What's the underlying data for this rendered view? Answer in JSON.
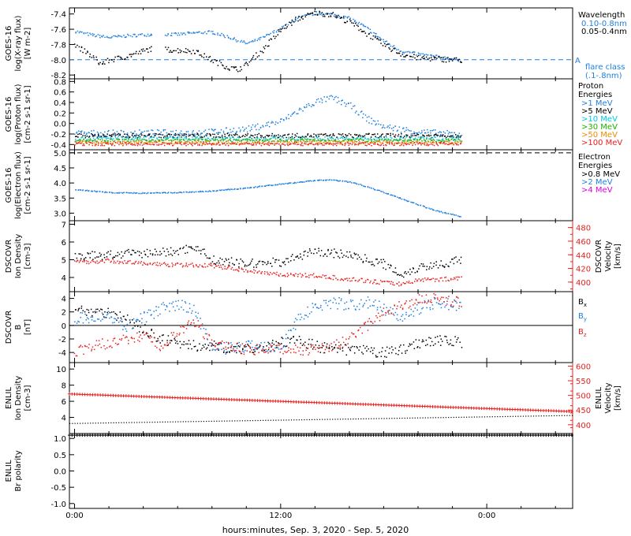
{
  "colors": {
    "black": "#000000",
    "blue": "#1f7fe0",
    "cyan": "#00c8e8",
    "green": "#22b000",
    "orange": "#f08a00",
    "red": "#e8211e",
    "magenta": "#e000e0"
  },
  "footer": {
    "xlabel": "hours:minutes, Sep.  3, 2020 - Sep.  5, 2020"
  },
  "chart_data": [
    {
      "id": "xray",
      "type": "scatter",
      "ylabel": [
        "GOES-16",
        "log(X-ray flux)",
        "[W m-2]"
      ],
      "ylim": [
        -8.25,
        -7.32
      ],
      "yticks": [
        -8.2,
        -8.0,
        -7.8,
        -7.6,
        -7.4
      ],
      "ytick_labels": [
        "-8.2",
        "-8.0",
        "-7.8",
        "-7.6",
        "-7.4"
      ],
      "xlim_hours": [
        -0.3,
        29.0
      ],
      "legend_title": "Wavelength",
      "legend": [
        {
          "label": "0.10-0.8nm",
          "color_key": "blue"
        },
        {
          "label": "0.05-0.4nm",
          "color_key": "black"
        }
      ],
      "reference_line": {
        "y": -8.0,
        "label": "A",
        "note": [
          "flare class",
          "(.1-.8nm)"
        ],
        "color_key": "blue"
      },
      "gaps_hours": [
        [
          4.5,
          5.2
        ]
      ],
      "series": [
        {
          "name": "0.10-0.8nm",
          "color_key": "blue",
          "spread": 0.02,
          "x": [
            0,
            1,
            2,
            3,
            4.4,
            5.3,
            6,
            7,
            8,
            9,
            10,
            11,
            12,
            13,
            14,
            15,
            16,
            17,
            18,
            19,
            20,
            21,
            22.5
          ],
          "y": [
            -7.62,
            -7.67,
            -7.7,
            -7.68,
            -7.66,
            -7.66,
            -7.66,
            -7.64,
            -7.63,
            -7.7,
            -7.78,
            -7.7,
            -7.58,
            -7.45,
            -7.38,
            -7.4,
            -7.45,
            -7.58,
            -7.75,
            -7.88,
            -7.92,
            -7.95,
            -8.0
          ]
        },
        {
          "name": "0.05-0.4nm",
          "color_key": "black",
          "spread": 0.035,
          "x": [
            0,
            1,
            1.5,
            2,
            3,
            4.4,
            7,
            8,
            9,
            9.5,
            10,
            11,
            12,
            13,
            14,
            15,
            16,
            17,
            18,
            19,
            20,
            21,
            22.5
          ],
          "y": [
            -7.8,
            -7.95,
            -8.05,
            -8.0,
            -7.95,
            -7.85,
            -7.88,
            -8.0,
            -8.1,
            -8.12,
            -8.05,
            -7.85,
            -7.6,
            -7.45,
            -7.38,
            -7.4,
            -7.5,
            -7.65,
            -7.8,
            -7.92,
            -7.97,
            -7.98,
            -8.0
          ]
        }
      ]
    },
    {
      "id": "proton",
      "type": "scatter",
      "ylabel": [
        "GOES-16",
        "log(Proton flux)",
        "[cm-2 s-1 sr-1]"
      ],
      "ylim": [
        -0.5,
        0.85
      ],
      "yticks": [
        -0.4,
        -0.2,
        0.0,
        0.2,
        0.4,
        0.6,
        0.8
      ],
      "ytick_labels": [
        "-0.4",
        "-0.2",
        "0.0",
        "0.2",
        "0.4",
        "0.6",
        "0.8"
      ],
      "xlim_hours": [
        -0.3,
        29.0
      ],
      "legend_title": [
        "Proton",
        "Energies"
      ],
      "legend": [
        {
          "label": ">1 MeV",
          "color_key": "blue"
        },
        {
          "label": ">5 MeV",
          "color_key": "black"
        },
        {
          "label": ">10 MeV",
          "color_key": "cyan"
        },
        {
          "label": ">30 MeV",
          "color_key": "green"
        },
        {
          "label": ">50 MeV",
          "color_key": "orange"
        },
        {
          "label": ">100 MeV",
          "color_key": "red"
        }
      ],
      "series": [
        {
          "name": ">1 MeV",
          "color_key": "blue",
          "spread": 0.06,
          "x": [
            0,
            4,
            8,
            10,
            12,
            13,
            14,
            15,
            16,
            17,
            18,
            20,
            22.5
          ],
          "y": [
            -0.18,
            -0.17,
            -0.15,
            -0.1,
            0.05,
            0.25,
            0.42,
            0.5,
            0.35,
            0.1,
            -0.05,
            -0.15,
            -0.2
          ]
        },
        {
          "name": ">5 MeV",
          "color_key": "black",
          "spread": 0.04,
          "x": [
            0,
            22.5
          ],
          "y": [
            -0.22,
            -0.22
          ]
        },
        {
          "name": ">10 MeV",
          "color_key": "cyan",
          "spread": 0.04,
          "x": [
            0,
            22.5
          ],
          "y": [
            -0.28,
            -0.28
          ]
        },
        {
          "name": ">30 MeV",
          "color_key": "green",
          "spread": 0.03,
          "x": [
            0,
            22.5
          ],
          "y": [
            -0.31,
            -0.31
          ]
        },
        {
          "name": ">50 MeV",
          "color_key": "orange",
          "spread": 0.03,
          "x": [
            0,
            22.5
          ],
          "y": [
            -0.35,
            -0.35
          ]
        },
        {
          "name": ">100 MeV",
          "color_key": "red",
          "spread": 0.03,
          "x": [
            0,
            22.5
          ],
          "y": [
            -0.38,
            -0.38
          ]
        }
      ]
    },
    {
      "id": "electron",
      "type": "scatter",
      "ylabel": [
        "GOES-16",
        "log(Electron flux)",
        "[cm-2 s-1 sr-1]"
      ],
      "ylim": [
        2.75,
        5.1
      ],
      "yticks": [
        3.0,
        3.5,
        4.0,
        4.5,
        5.0
      ],
      "ytick_labels": [
        "3.0",
        "3.5",
        "4.0",
        "4.5",
        "5.0"
      ],
      "xlim_hours": [
        -0.3,
        29.0
      ],
      "legend_title": [
        "Electron",
        "Energies"
      ],
      "legend": [
        {
          "label": ">0.8 MeV",
          "color_key": "black"
        },
        {
          "label": ">2 MeV",
          "color_key": "blue"
        },
        {
          "label": ">4 MeV",
          "color_key": "magenta"
        }
      ],
      "reference_line": {
        "y": 5.0,
        "color_key": "black"
      },
      "series": [
        {
          "name": ">2 MeV",
          "color_key": "blue",
          "spread": 0.015,
          "x": [
            0,
            2,
            4,
            6,
            8,
            10,
            12,
            14,
            15,
            16,
            17,
            18,
            19,
            20,
            21,
            22.5
          ],
          "y": [
            3.8,
            3.7,
            3.68,
            3.7,
            3.75,
            3.85,
            3.98,
            4.1,
            4.12,
            4.05,
            3.9,
            3.7,
            3.5,
            3.3,
            3.1,
            2.9
          ]
        }
      ]
    },
    {
      "id": "dscovr-density",
      "type": "scatter",
      "ylabel": [
        "DSCOVR",
        "Ion Density",
        "[cm-3]"
      ],
      "ylim": [
        3.2,
        7.2
      ],
      "yticks": [
        4,
        5,
        6,
        7
      ],
      "ytick_labels": [
        "4",
        "5",
        "6",
        "7"
      ],
      "y2label": [
        "DSCOVR",
        "Velocity",
        "[km/s]"
      ],
      "y2lim": [
        386,
        490
      ],
      "y2ticks": [
        400,
        420,
        440,
        460,
        480
      ],
      "y2tick_labels": [
        "400",
        "420",
        "440",
        "460",
        "480"
      ],
      "xlim_hours": [
        -0.3,
        29.0
      ],
      "series": [
        {
          "name": "density",
          "color_key": "black",
          "spread": 0.25,
          "x": [
            0,
            2,
            4,
            6,
            7,
            8,
            10,
            12,
            14,
            16,
            18,
            19,
            20,
            22.5
          ],
          "y": [
            5.2,
            5.3,
            5.4,
            5.5,
            5.8,
            5.0,
            4.8,
            4.9,
            5.5,
            5.3,
            4.8,
            4.2,
            4.6,
            5.0
          ]
        },
        {
          "name": "velocity",
          "color_key": "red",
          "axis": "right",
          "spread": 3,
          "x": [
            0,
            2,
            4,
            6,
            8,
            10,
            12,
            14,
            16,
            18,
            19,
            20,
            22.5
          ],
          "y": [
            430,
            432,
            428,
            426,
            425,
            418,
            412,
            410,
            405,
            400,
            398,
            404,
            406
          ]
        }
      ]
    },
    {
      "id": "dscovr-b",
      "type": "scatter",
      "ylabel": [
        "DSCOVR",
        "B",
        "[nT]"
      ],
      "ylim": [
        -5.5,
        5.0
      ],
      "yticks": [
        -4,
        -2,
        0,
        2,
        4
      ],
      "ytick_labels": [
        "-4",
        "-2",
        "0",
        "2",
        "4"
      ],
      "xlim_hours": [
        -0.3,
        29.0
      ],
      "zero_line": true,
      "legend": [
        {
          "label": "Bx",
          "color_key": "black"
        },
        {
          "label": "By",
          "color_key": "blue"
        },
        {
          "label": "Bz",
          "color_key": "red"
        }
      ],
      "series": [
        {
          "name": "Bx",
          "color_key": "black",
          "spread": 0.8,
          "x": [
            0,
            2,
            3,
            5,
            7,
            8,
            10,
            12,
            13,
            14,
            15,
            16,
            18,
            19,
            20,
            21,
            22.5
          ],
          "y": [
            2.5,
            2.0,
            1.0,
            -2.0,
            -3.0,
            -3.0,
            -3.5,
            -2.5,
            -2.0,
            -3.0,
            -3.5,
            -3.5,
            -4.0,
            -3.5,
            -2.5,
            -2.0,
            -2.5
          ]
        },
        {
          "name": "By",
          "color_key": "blue",
          "spread": 0.9,
          "x": [
            0,
            2,
            3,
            5,
            6,
            7,
            8,
            10,
            12,
            13,
            14,
            15,
            16,
            17,
            18,
            19,
            20,
            21,
            22.5
          ],
          "y": [
            1.0,
            1.5,
            0.0,
            2.5,
            3.0,
            2.5,
            -3.5,
            -3.0,
            -3.0,
            1.0,
            3.0,
            3.5,
            3.0,
            3.5,
            2.5,
            1.5,
            2.5,
            3.5,
            3.0
          ]
        },
        {
          "name": "Bz",
          "color_key": "red",
          "spread": 0.8,
          "x": [
            0,
            1,
            3,
            4,
            5,
            6,
            7,
            8,
            10,
            12,
            14,
            15,
            16,
            17,
            18,
            19,
            20,
            21,
            22.5
          ],
          "y": [
            -4.0,
            -3.0,
            -2.0,
            -1.5,
            -3.0,
            -1.0,
            0.5,
            -2.5,
            -3.5,
            -3.5,
            -3.5,
            -3.0,
            -2.0,
            0.0,
            2.0,
            3.0,
            4.0,
            4.0,
            3.5
          ]
        }
      ]
    },
    {
      "id": "enlil-density",
      "type": "line",
      "ylabel": [
        "ENLIL",
        "Ion Density",
        "[cm-3]"
      ],
      "ylim": [
        2.0,
        10.8
      ],
      "yticks": [
        4,
        6,
        8,
        10
      ],
      "ytick_labels": [
        "4",
        "6",
        "8",
        "10"
      ],
      "y2label": [
        "ENLIL",
        "Velocity",
        "[km/s]"
      ],
      "y2lim": [
        370,
        612
      ],
      "y2ticks": [
        400,
        450,
        500,
        550,
        600
      ],
      "y2tick_labels": [
        "400",
        "450",
        "500",
        "550",
        "600"
      ],
      "xlim_hours": [
        -0.3,
        29.0
      ],
      "series": [
        {
          "name": "density",
          "color_key": "black",
          "marker": "dot",
          "x": [
            -0.3,
            29.0
          ],
          "y": [
            3.3,
            4.3
          ]
        },
        {
          "name": "velocity",
          "color_key": "red",
          "axis": "right",
          "marker": "plus",
          "x": [
            -0.3,
            29.0
          ],
          "y": [
            505,
            445
          ]
        }
      ]
    },
    {
      "id": "enlil-polarity",
      "type": "line",
      "ylabel": [
        "ENLIL",
        "Br polarity"
      ],
      "ylim": [
        -1.15,
        1.15
      ],
      "yticks": [
        -1.0,
        -0.5,
        0.0,
        0.5,
        1.0
      ],
      "ytick_labels": [
        "-1.0",
        "-0.5",
        "0.0",
        "0.5",
        "1.0"
      ],
      "xlim_hours": [
        -0.3,
        29.0
      ],
      "xticks": [
        0,
        12,
        24
      ],
      "xtick_labels": [
        "0:00",
        "12:00",
        "0:00"
      ],
      "series": [
        {
          "name": "polarity",
          "color_key": "black",
          "marker": "plus",
          "x": [
            -0.3,
            29.0
          ],
          "y": [
            1.1,
            1.1
          ]
        }
      ]
    }
  ]
}
